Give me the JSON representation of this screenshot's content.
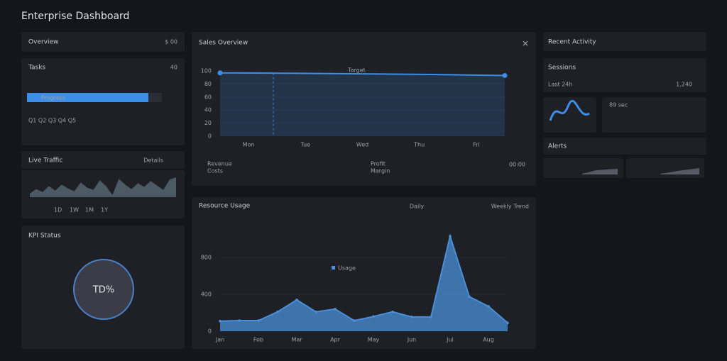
{
  "header": {
    "title": "Enterprise Dashboard"
  },
  "overview": {
    "title": "Overview",
    "value": "$ 00"
  },
  "progress": {
    "title": "Tasks",
    "count": "40",
    "bar_label": "Progress",
    "value": 90,
    "footer": "Q1  Q2  Q3  Q4  Q5"
  },
  "sparkline": {
    "title": "Live Traffic",
    "action": "Details",
    "values": [
      40,
      46,
      42,
      50,
      44,
      52,
      47,
      43,
      55,
      48,
      45,
      58,
      50,
      38,
      60,
      52,
      46,
      54,
      49,
      57,
      51,
      45,
      59,
      62
    ],
    "tabs": [
      "1D",
      "1W",
      "1M",
      "1Y"
    ]
  },
  "kpi": {
    "title": "KPI Status",
    "value": "TD%"
  },
  "right": {
    "activity": "Recent Activity",
    "sessions": "Sessions",
    "sessions_value": "1,240",
    "sessions_meta": "Last 24h",
    "visits": "89 sec",
    "alerts": "Alerts"
  },
  "chart_data": [
    {
      "type": "line",
      "title": "Sales Overview",
      "annotation": "Target",
      "categories": [
        "Mon",
        "Tue",
        "Wed",
        "Thu",
        "Fri"
      ],
      "values": [
        97,
        96.5,
        95.5,
        94.5,
        93
      ],
      "ylim": [
        0,
        100
      ],
      "yticks": [
        0,
        20,
        40,
        60,
        80,
        100
      ],
      "color": "#3d8ee8",
      "legend": [
        "Revenue",
        "Costs",
        "Profit",
        "Margin"
      ],
      "footer": "00:00"
    },
    {
      "type": "area",
      "title": "Resource Usage",
      "tabs": [
        "Daily",
        "Weekly Trend"
      ],
      "legend": "Usage",
      "categories": [
        "Jan",
        null,
        "Feb",
        null,
        "Mar",
        null,
        "Apr",
        null,
        "May",
        null,
        "Jun",
        null,
        "Jul",
        null,
        "Aug",
        null
      ],
      "values": [
        110,
        115,
        115,
        210,
        340,
        210,
        240,
        115,
        160,
        210,
        155,
        155,
        1030,
        375,
        270,
        90
      ],
      "ylim": [
        0,
        1200
      ],
      "yticks": [
        0,
        400,
        800
      ],
      "color": "#4a8fd8"
    }
  ]
}
